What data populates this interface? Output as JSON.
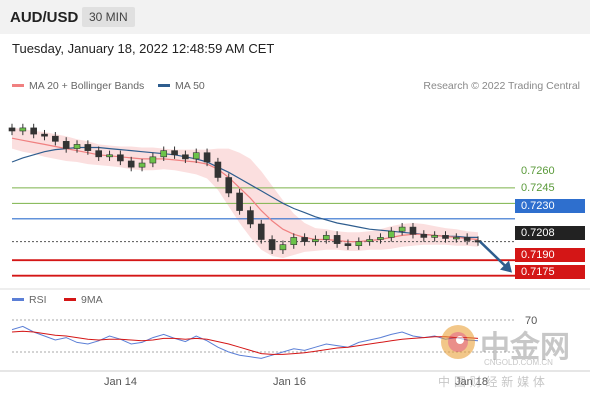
{
  "header": {
    "pair": "AUD/USD",
    "timeframe": "30 MIN"
  },
  "date_line": "Tuesday, January 18, 2022 12:48:59 AM CET",
  "legend": {
    "ma20": "MA 20 + Bollinger Bands",
    "ma50": "MA 50",
    "credit": "Research © 2022 Trading Central"
  },
  "rsi_legend": {
    "rsi": "RSI",
    "ma9": "9MA"
  },
  "colors": {
    "ma20": "#f08080",
    "bands": "#fad4d4",
    "ma50": "#2e5d8e",
    "green": "#7cb24a",
    "blue": "#2e6fce",
    "red": "#d41616",
    "rsi": "#5b7fd6",
    "rsi_ma": "#d41616"
  },
  "levels": [
    {
      "label": "0.7260",
      "value": 0.726,
      "style": "green-line"
    },
    {
      "label": "0.7245",
      "value": 0.7245,
      "style": "green-line"
    },
    {
      "label": "0.7230",
      "value": 0.723,
      "style": "blue-line"
    },
    {
      "label": "0.7208",
      "value": 0.7208,
      "style": "current-price"
    },
    {
      "label": "0.7190",
      "value": 0.719,
      "style": "red-line"
    },
    {
      "label": "0.7175",
      "value": 0.7175,
      "style": "red-line"
    }
  ],
  "rsi_level": "70",
  "watermark": {
    "brand": "中金网",
    "site": "CNGOLD.COM.CN",
    "tagline": "中 国 财 经 新 媒 体"
  },
  "chart_data": {
    "type": "line",
    "title": "AUD/USD",
    "x_ticks": [
      "Jan 14",
      "Jan 16",
      "Jan 18"
    ],
    "ylim": [
      0.7165,
      0.7345
    ],
    "price": [
      0.7315,
      0.7318,
      0.7312,
      0.731,
      0.7305,
      0.7298,
      0.7302,
      0.7296,
      0.729,
      0.7292,
      0.7286,
      0.728,
      0.7284,
      0.729,
      0.7296,
      0.7292,
      0.7288,
      0.7294,
      0.7285,
      0.727,
      0.7255,
      0.7238,
      0.7225,
      0.721,
      0.72,
      0.7205,
      0.7212,
      0.7208,
      0.721,
      0.7214,
      0.7206,
      0.7204,
      0.7208,
      0.721,
      0.7212,
      0.7218,
      0.7222,
      0.7215,
      0.7212,
      0.7214,
      0.7211,
      0.7212,
      0.7209,
      0.7208
    ],
    "ma20": [
      0.7308,
      0.7306,
      0.7304,
      0.7302,
      0.73,
      0.7298,
      0.7296,
      0.7294,
      0.7292,
      0.7291,
      0.729,
      0.7289,
      0.7288,
      0.7288,
      0.7288,
      0.7287,
      0.7286,
      0.7285,
      0.7283,
      0.7278,
      0.727,
      0.726,
      0.725,
      0.7238,
      0.7228,
      0.722,
      0.7215,
      0.7212,
      0.721,
      0.721,
      0.7209,
      0.7208,
      0.7208,
      0.7209,
      0.721,
      0.7212,
      0.7214,
      0.7215,
      0.7215,
      0.7214,
      0.7213,
      0.7212,
      0.7211,
      0.721
    ],
    "band_width": [
      0.001,
      0.0011,
      0.0011,
      0.0012,
      0.0012,
      0.0012,
      0.0011,
      0.0011,
      0.001,
      0.001,
      0.001,
      0.0011,
      0.0011,
      0.0011,
      0.001,
      0.001,
      0.0011,
      0.0012,
      0.0014,
      0.002,
      0.0028,
      0.0034,
      0.0038,
      0.0038,
      0.0034,
      0.0028,
      0.002,
      0.0014,
      0.0011,
      0.001,
      0.0009,
      0.0009,
      0.0009,
      0.0009,
      0.001,
      0.0011,
      0.0011,
      0.0011,
      0.001,
      0.0009,
      0.0008,
      0.0008,
      0.0007,
      0.0007
    ],
    "ma50": [
      0.7285,
      0.7289,
      0.7292,
      0.7295,
      0.7297,
      0.7298,
      0.7299,
      0.7299,
      0.7299,
      0.7298,
      0.7297,
      0.7296,
      0.7295,
      0.7294,
      0.7293,
      0.7292,
      0.729,
      0.7288,
      0.7285,
      0.728,
      0.7275,
      0.7269,
      0.7263,
      0.7257,
      0.7251,
      0.7245,
      0.724,
      0.7236,
      0.7232,
      0.7229,
      0.7226,
      0.7224,
      0.7222,
      0.722,
      0.7219,
      0.7218,
      0.7217,
      0.7216,
      0.7215,
      0.7214,
      0.7213,
      0.7213,
      0.7212,
      0.7212
    ],
    "forecast": [
      0.7208,
      0.7178
    ],
    "rsi": [
      58,
      62,
      55,
      50,
      45,
      48,
      42,
      40,
      44,
      50,
      46,
      40,
      42,
      48,
      52,
      47,
      43,
      50,
      44,
      36,
      30,
      26,
      24,
      22,
      26,
      30,
      34,
      32,
      36,
      40,
      38,
      36,
      42,
      45,
      48,
      52,
      55,
      50,
      48,
      50,
      46,
      48,
      45,
      44
    ],
    "rsi_ma": [
      55,
      56,
      55,
      53,
      51,
      50,
      48,
      46,
      45,
      46,
      46,
      45,
      44,
      45,
      47,
      47,
      46,
      47,
      46,
      43,
      40,
      36,
      32,
      28,
      27,
      27,
      28,
      29,
      31,
      33,
      35,
      36,
      38,
      40,
      42,
      44,
      46,
      47,
      48,
      49,
      49,
      48,
      48,
      47
    ],
    "rsi_ylim": [
      10,
      80
    ]
  }
}
